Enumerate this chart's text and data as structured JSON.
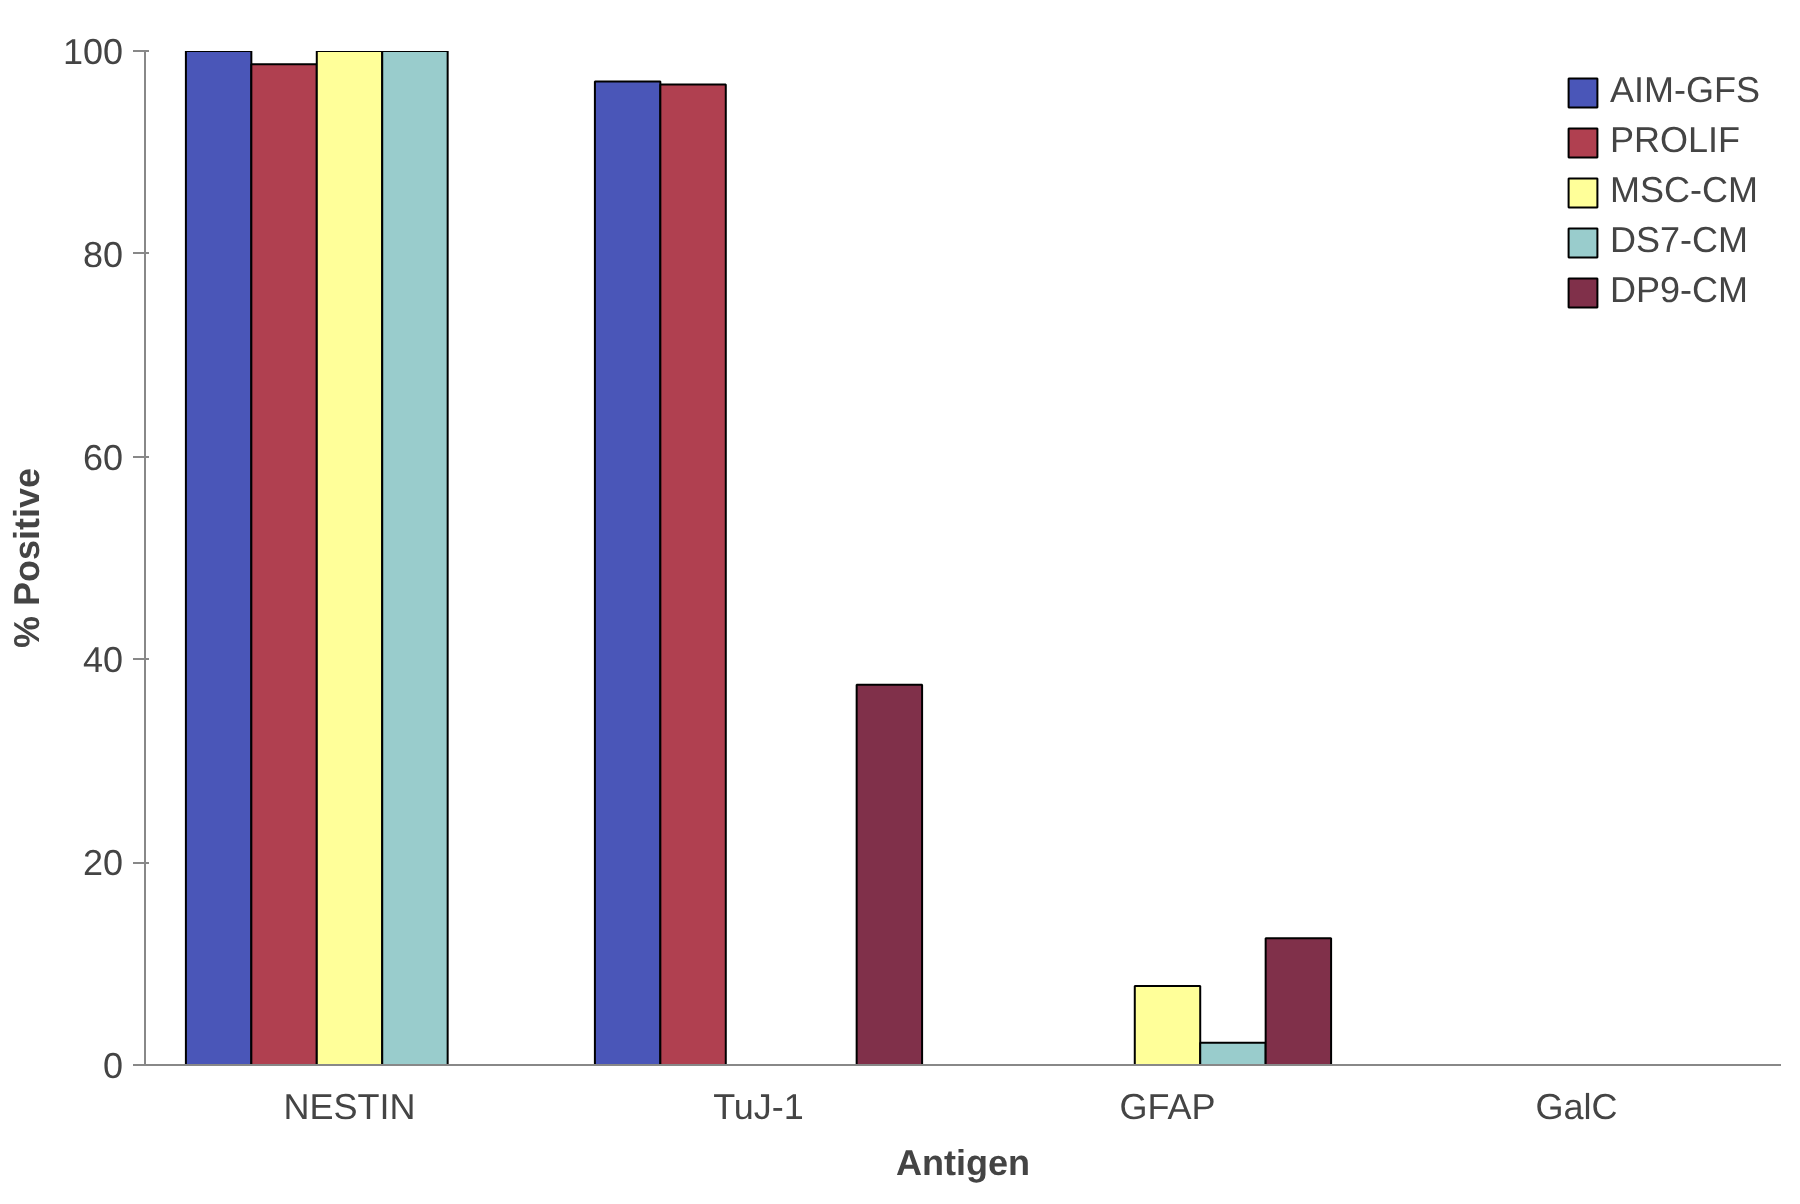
{
  "chart_data": {
    "type": "bar",
    "xlabel": "Antigen",
    "ylabel": "% Positive",
    "categories": [
      "NESTIN",
      "TuJ-1",
      "GFAP",
      "GalC"
    ],
    "series": [
      {
        "name": "AIM-GFS",
        "color": "#4a56b8",
        "values": [
          100,
          97,
          null,
          null
        ]
      },
      {
        "name": "PROLIF",
        "color": "#b04050",
        "values": [
          98.7,
          96.7,
          null,
          null
        ]
      },
      {
        "name": "MSC-CM",
        "color": "#ffff99",
        "values": [
          100,
          null,
          7.8,
          null
        ]
      },
      {
        "name": "DS7-CM",
        "color": "#99cccc",
        "values": [
          100,
          null,
          2.2,
          null
        ]
      },
      {
        "name": "DP9-CM",
        "color": "#80304a",
        "values": [
          null,
          37.5,
          12.5,
          null
        ]
      }
    ],
    "ylim": [
      0,
      100
    ],
    "yticks": [
      0,
      20,
      40,
      60,
      80,
      100
    ],
    "grid": false,
    "legend": "top right"
  }
}
